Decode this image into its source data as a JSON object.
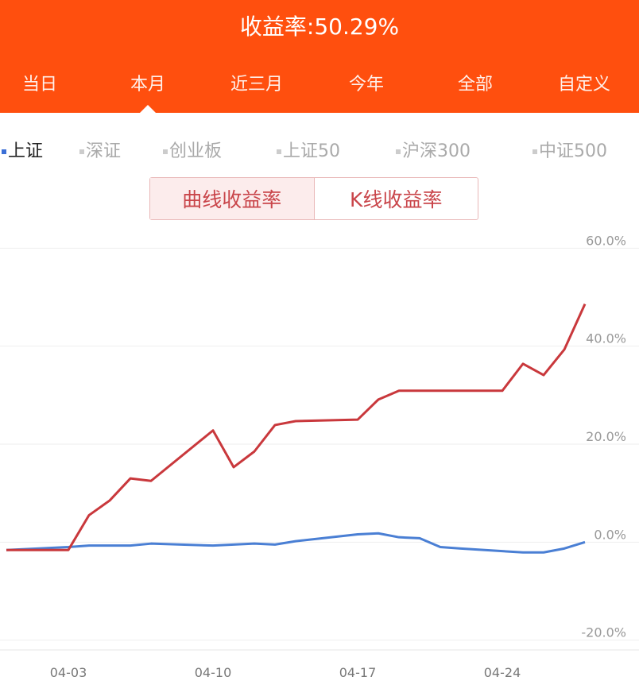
{
  "header": {
    "title": "收益率:50.29%",
    "tabs": [
      "当日",
      "本月",
      "近三月",
      "今年",
      "全部",
      "自定义"
    ],
    "active_tab": "本月"
  },
  "legend": {
    "items": [
      "上证",
      "深证",
      "创业板",
      "上证50",
      "沪深300",
      "中证500"
    ],
    "active": "上证"
  },
  "toggle": {
    "buttons": [
      "曲线收益率",
      "K线收益率"
    ],
    "active": "曲线收益率"
  },
  "colors": {
    "header": "#ff4f0e",
    "strategy": "#c9383c",
    "index": "#4a7fd4"
  },
  "chart_data": {
    "type": "line",
    "x_ticks": [
      "04-03",
      "04-10",
      "04-17",
      "04-24"
    ],
    "y_ticks": [
      "60.0%",
      "40.0%",
      "20.0%",
      "0.0%",
      "-20.0%"
    ],
    "ylim": [
      -22,
      62
    ],
    "grid": true,
    "series": [
      {
        "color": "#c9383c",
        "x": [
          "03-31",
          "04-03",
          "04-04",
          "04-05",
          "04-06",
          "04-07",
          "04-10",
          "04-11",
          "04-12",
          "04-13",
          "04-14",
          "04-17",
          "04-18",
          "04-19",
          "04-24",
          "04-25",
          "04-26",
          "04-27",
          "04-28"
        ],
        "values": [
          -1.6,
          -1.6,
          5.5,
          8.5,
          13.0,
          12.5,
          22.8,
          15.3,
          18.5,
          23.9,
          24.7,
          25.0,
          29.1,
          30.9,
          30.9,
          36.4,
          34.1,
          39.3,
          48.6
        ]
      },
      {
        "name": "上证",
        "color": "#4a7fd4",
        "x": [
          "03-31",
          "04-03",
          "04-04",
          "04-06",
          "04-07",
          "04-10",
          "04-12",
          "04-13",
          "04-14",
          "04-17",
          "04-18",
          "04-19",
          "04-20",
          "04-21",
          "04-22",
          "04-25",
          "04-26",
          "04-27",
          "04-28"
        ],
        "values": [
          -1.6,
          -1.0,
          -0.7,
          -0.7,
          -0.3,
          -0.7,
          -0.3,
          -0.5,
          0.2,
          1.6,
          1.8,
          1.0,
          0.8,
          -1.0,
          -1.3,
          -2.1,
          -2.1,
          -1.3,
          0.0
        ]
      }
    ]
  }
}
